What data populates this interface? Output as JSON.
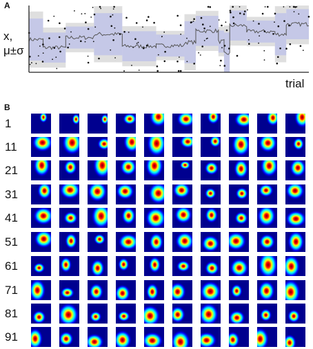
{
  "panel_a": {
    "label": "A",
    "ylabel_line1": "x,",
    "ylabel_line2": "μ±σ",
    "xlabel": "trial",
    "colors": {
      "band_gray": "#d9d9d9",
      "band_blue": "#aeb4ec",
      "line": "#555555",
      "dots": "#111111",
      "axis": "#222222"
    },
    "chart_data": {
      "type": "line",
      "title": "",
      "xlabel": "trial",
      "ylabel": "x, μ±σ",
      "x_range": [
        1,
        100
      ],
      "y_range": [
        0,
        1
      ],
      "grid": false,
      "legend": "none",
      "trial_segments": [
        {
          "start": 1,
          "end": 6,
          "mean": 0.49
        },
        {
          "start": 6,
          "end": 14,
          "mean": 0.37
        },
        {
          "start": 14,
          "end": 24,
          "mean": 0.52
        },
        {
          "start": 24,
          "end": 34,
          "mean": 0.57
        },
        {
          "start": 34,
          "end": 46,
          "mean": 0.39
        },
        {
          "start": 46,
          "end": 56,
          "mean": 0.4
        },
        {
          "start": 56,
          "end": 60,
          "mean": 0.45
        },
        {
          "start": 60,
          "end": 68,
          "mean": 0.62
        },
        {
          "start": 68,
          "end": 70,
          "mean": 0.46
        },
        {
          "start": 70,
          "end": 72,
          "mean": 0.28
        },
        {
          "start": 72,
          "end": 78,
          "mean": 0.7
        },
        {
          "start": 78,
          "end": 88,
          "mean": 0.61
        },
        {
          "start": 88,
          "end": 92,
          "mean": 0.57
        },
        {
          "start": 92,
          "end": 100,
          "mean": 0.72
        }
      ]
    }
  },
  "panel_b": {
    "label": "B",
    "rows": [
      {
        "label": "1"
      },
      {
        "label": "11"
      },
      {
        "label": "21"
      },
      {
        "label": "31"
      },
      {
        "label": "41"
      },
      {
        "label": "51"
      },
      {
        "label": "61"
      },
      {
        "label": "71"
      },
      {
        "label": "81"
      },
      {
        "label": "91"
      }
    ],
    "columns_per_row": 10,
    "colormap": [
      "#00008f",
      "#0000ff",
      "#00ffff",
      "#ffff00",
      "#ff0000",
      "#800000"
    ]
  }
}
